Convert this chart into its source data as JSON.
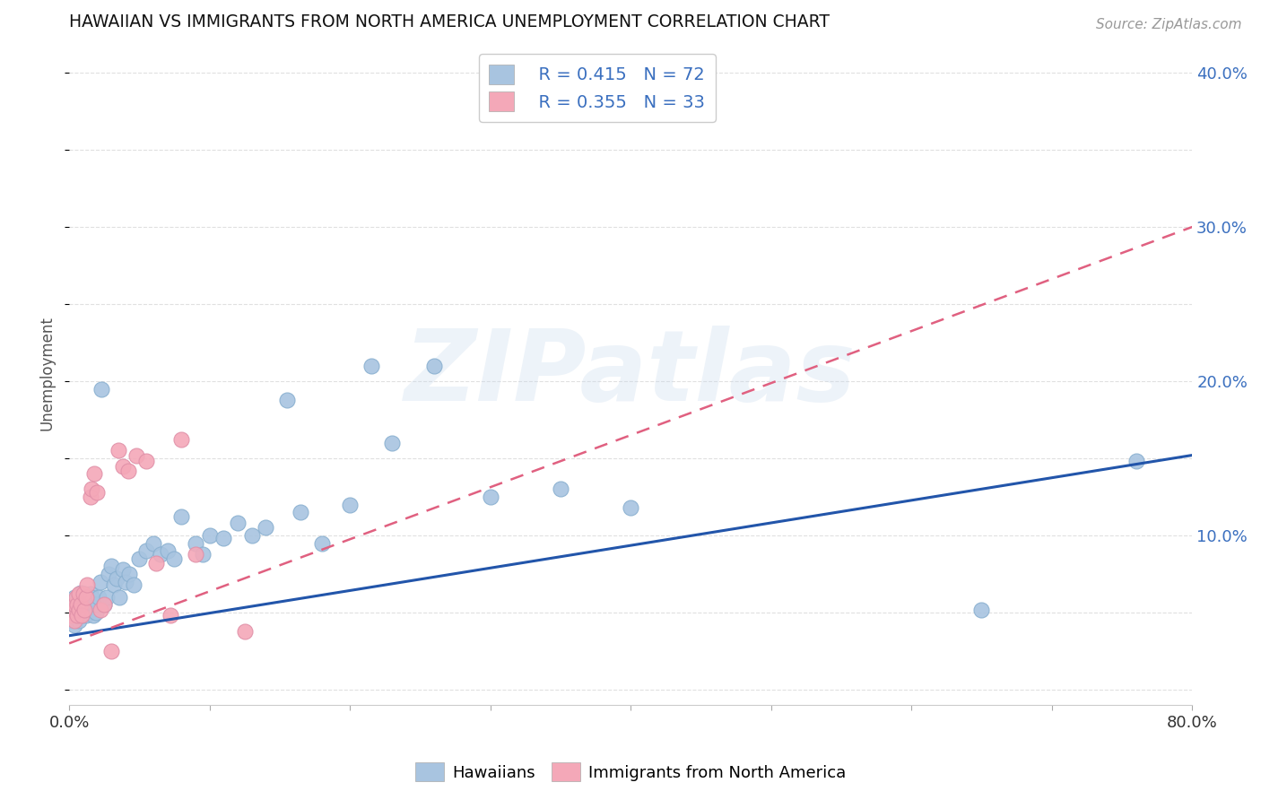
{
  "title": "HAWAIIAN VS IMMIGRANTS FROM NORTH AMERICA UNEMPLOYMENT CORRELATION CHART",
  "source": "Source: ZipAtlas.com",
  "ylabel": "Unemployment",
  "right_ytick_vals": [
    0.0,
    0.1,
    0.2,
    0.3,
    0.4
  ],
  "right_ytick_labels": [
    "",
    "10.0%",
    "20.0%",
    "30.0%",
    "40.0%"
  ],
  "xlim": [
    0.0,
    0.8
  ],
  "ylim": [
    -0.01,
    0.42
  ],
  "hawaiians_color": "#a8c4e0",
  "immigrants_color": "#f4a8b8",
  "hawaiians_line_color": "#2255aa",
  "immigrants_line_color": "#e06080",
  "legend_R1": "R = 0.415",
  "legend_N1": "N = 72",
  "legend_R2": "R = 0.355",
  "legend_N2": "N = 33",
  "legend_label1": "Hawaiians",
  "legend_label2": "Immigrants from North America",
  "watermark": "ZIPatlas",
  "hawaiians_x": [
    0.001,
    0.002,
    0.003,
    0.003,
    0.004,
    0.004,
    0.005,
    0.005,
    0.006,
    0.006,
    0.007,
    0.007,
    0.008,
    0.008,
    0.009,
    0.009,
    0.01,
    0.01,
    0.011,
    0.011,
    0.012,
    0.012,
    0.013,
    0.013,
    0.014,
    0.015,
    0.015,
    0.016,
    0.017,
    0.018,
    0.019,
    0.02,
    0.021,
    0.022,
    0.023,
    0.025,
    0.027,
    0.028,
    0.03,
    0.032,
    0.034,
    0.036,
    0.038,
    0.04,
    0.043,
    0.046,
    0.05,
    0.055,
    0.06,
    0.065,
    0.07,
    0.075,
    0.08,
    0.09,
    0.095,
    0.1,
    0.11,
    0.12,
    0.13,
    0.14,
    0.155,
    0.165,
    0.18,
    0.2,
    0.215,
    0.23,
    0.26,
    0.3,
    0.35,
    0.4,
    0.65,
    0.76
  ],
  "hawaiians_y": [
    0.045,
    0.05,
    0.048,
    0.055,
    0.042,
    0.06,
    0.048,
    0.053,
    0.052,
    0.058,
    0.045,
    0.06,
    0.05,
    0.063,
    0.048,
    0.055,
    0.052,
    0.058,
    0.05,
    0.062,
    0.048,
    0.055,
    0.052,
    0.06,
    0.058,
    0.052,
    0.062,
    0.06,
    0.048,
    0.055,
    0.05,
    0.055,
    0.06,
    0.07,
    0.195,
    0.055,
    0.06,
    0.075,
    0.08,
    0.068,
    0.072,
    0.06,
    0.078,
    0.07,
    0.075,
    0.068,
    0.085,
    0.09,
    0.095,
    0.088,
    0.09,
    0.085,
    0.112,
    0.095,
    0.088,
    0.1,
    0.098,
    0.108,
    0.1,
    0.105,
    0.188,
    0.115,
    0.095,
    0.12,
    0.21,
    0.16,
    0.21,
    0.125,
    0.13,
    0.118,
    0.052,
    0.148
  ],
  "immigrants_x": [
    0.001,
    0.002,
    0.003,
    0.004,
    0.004,
    0.005,
    0.006,
    0.006,
    0.007,
    0.007,
    0.008,
    0.009,
    0.01,
    0.011,
    0.012,
    0.013,
    0.015,
    0.016,
    0.018,
    0.02,
    0.022,
    0.025,
    0.03,
    0.035,
    0.038,
    0.042,
    0.048,
    0.055,
    0.062,
    0.072,
    0.08,
    0.09,
    0.125
  ],
  "immigrants_y": [
    0.05,
    0.048,
    0.052,
    0.055,
    0.045,
    0.06,
    0.048,
    0.055,
    0.052,
    0.062,
    0.055,
    0.048,
    0.062,
    0.052,
    0.06,
    0.068,
    0.125,
    0.13,
    0.14,
    0.128,
    0.052,
    0.055,
    0.025,
    0.155,
    0.145,
    0.142,
    0.152,
    0.148,
    0.082,
    0.048,
    0.162,
    0.088,
    0.038
  ],
  "background_color": "#ffffff",
  "grid_color": "#e0e0e0"
}
